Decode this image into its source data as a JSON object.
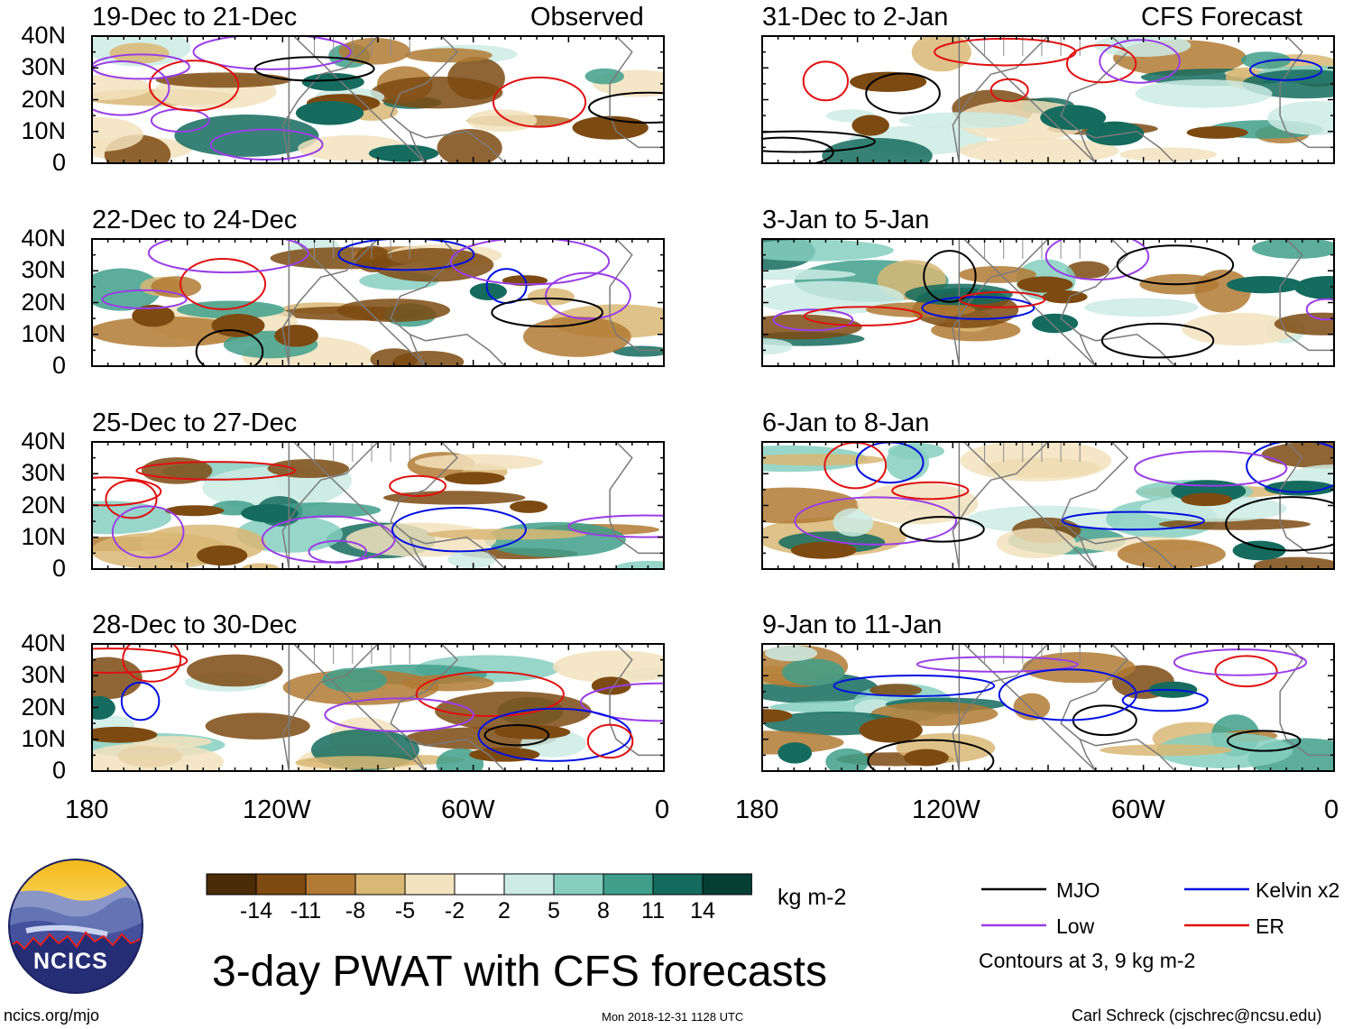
{
  "observed_label": "Observed",
  "forecast_label": "CFS Forecast",
  "panels_left": [
    {
      "title": "19-Dec to 21-Dec"
    },
    {
      "title": "22-Dec to 24-Dec"
    },
    {
      "title": "25-Dec to 27-Dec"
    },
    {
      "title": "28-Dec to 30-Dec"
    }
  ],
  "panels_right": [
    {
      "title": "31-Dec to 2-Jan"
    },
    {
      "title": "3-Jan to 5-Jan"
    },
    {
      "title": "6-Jan to 8-Jan"
    },
    {
      "title": "9-Jan to 11-Jan"
    }
  ],
  "lat_labels": [
    "40N",
    "30N",
    "20N",
    "10N",
    "0"
  ],
  "lon_labels": [
    "180",
    "120W",
    "60W",
    "0"
  ],
  "colorbar": {
    "colors": [
      "#4a2c08",
      "#7d4a12",
      "#b27a34",
      "#d9b774",
      "#f2e2bd",
      "#ffffff",
      "#cdebe4",
      "#86cfbf",
      "#3f9f8b",
      "#146b5e",
      "#053f34"
    ],
    "labels": [
      "-14",
      "-11",
      "-8",
      "-5",
      "-2",
      "2",
      "5",
      "8",
      "11",
      "14"
    ],
    "unit": "kg m-2"
  },
  "legend": {
    "items": [
      {
        "label": "MJO",
        "color": "#000000"
      },
      {
        "label": "Kelvin x2",
        "color": "#0010e0"
      },
      {
        "label": "Low",
        "color": "#9a3ee6"
      },
      {
        "label": "ER",
        "color": "#e01010"
      }
    ],
    "note": "Contours at 3, 9 kg m-2"
  },
  "main_title": "3-day PWAT with CFS forecasts",
  "logo_text": "NCICS",
  "footer": {
    "left": "ncics.org/mjo",
    "center": "Mon 2018-12-31 1128 UTC",
    "right": "Carl Schreck (cjschrec@ncsu.edu)"
  }
}
